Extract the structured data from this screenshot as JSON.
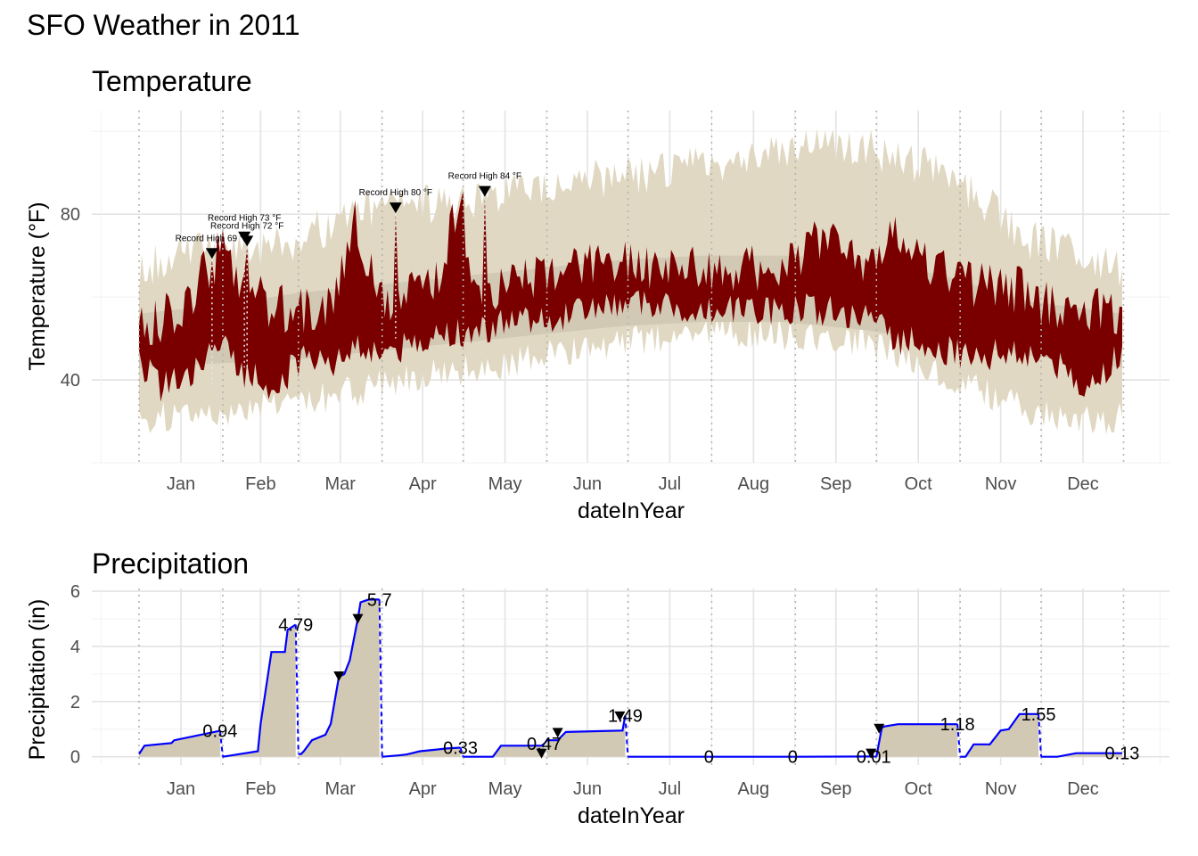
{
  "title": "SFO Weather in 2011",
  "chart_data": [
    {
      "type": "area",
      "panel": "Temperature",
      "title": "Temperature",
      "xlabel": "dateInYear",
      "ylabel": "Temperature (°F)",
      "x_ticks": [
        "Jan",
        "Feb",
        "Mar",
        "Apr",
        "May",
        "Jun",
        "Jul",
        "Aug",
        "Sep",
        "Oct",
        "Nov",
        "Dec"
      ],
      "y_ticks": [
        40,
        80
      ],
      "ylim": [
        20,
        105
      ],
      "grid": true,
      "colors": {
        "record_band": "#e0d8c2",
        "normal_band": "#d2c9b4",
        "actual": "#7a0000"
      },
      "record_anchors": {
        "day": [
          1,
          20,
          40,
          60,
          80,
          100,
          130,
          160,
          190,
          220,
          250,
          270,
          290,
          310,
          330,
          350,
          365
        ],
        "high": [
          66,
          72,
          70,
          74,
          80,
          82,
          84,
          88,
          90,
          93,
          97,
          96,
          92,
          85,
          74,
          70,
          66
        ],
        "low": [
          30,
          32,
          33,
          35,
          37,
          40,
          43,
          47,
          50,
          51,
          51,
          49,
          44,
          38,
          33,
          30,
          31
        ]
      },
      "normal_anchors": {
        "day": [
          1,
          30,
          60,
          90,
          120,
          150,
          180,
          210,
          240,
          270,
          300,
          330,
          365
        ],
        "high": [
          56,
          58,
          61,
          63,
          65,
          67,
          69,
          70,
          70,
          69,
          65,
          59,
          56
        ],
        "low": [
          43,
          44,
          45,
          47,
          49,
          51,
          53,
          54,
          54,
          52,
          49,
          46,
          43
        ]
      },
      "actual_anchors": {
        "day": [
          1,
          10,
          20,
          27,
          33,
          40,
          50,
          60,
          70,
          75,
          80,
          90,
          100,
          110,
          120,
          125,
          135,
          150,
          170,
          185,
          200,
          220,
          240,
          255,
          270,
          280,
          295,
          310,
          325,
          340,
          350,
          355,
          365
        ],
        "high": [
          52,
          55,
          60,
          68,
          73,
          62,
          58,
          56,
          57,
          62,
          80,
          58,
          60,
          62,
          84,
          62,
          62,
          66,
          68,
          68,
          67,
          66,
          68,
          74,
          66,
          76,
          68,
          63,
          62,
          58,
          56,
          58,
          54
        ],
        "low": [
          44,
          38,
          42,
          46,
          47,
          42,
          38,
          44,
          46,
          44,
          48,
          46,
          48,
          50,
          52,
          51,
          53,
          55,
          57,
          58,
          58,
          57,
          57,
          57,
          55,
          50,
          48,
          46,
          46,
          44,
          38,
          38,
          48
        ]
      },
      "annotations": [
        {
          "label": "Record High 69 °F",
          "day": 28,
          "temp": 69
        },
        {
          "label": "Record High 73 °F",
          "day": 40,
          "temp": 73
        },
        {
          "label": "Record High 72 °F",
          "day": 41,
          "temp": 72
        },
        {
          "label": "Record High 80 °F",
          "day": 96,
          "temp": 80
        },
        {
          "label": "Record High 84 °F",
          "day": 129,
          "temp": 84
        }
      ]
    },
    {
      "type": "line",
      "panel": "Precipitation",
      "title": "Precipitation",
      "xlabel": "dateInYear",
      "ylabel": "Precipitation (in)",
      "x_ticks": [
        "Jan",
        "Feb",
        "Mar",
        "Apr",
        "May",
        "Jun",
        "Jul",
        "Aug",
        "Sep",
        "Oct",
        "Nov",
        "Dec"
      ],
      "y_ticks": [
        0,
        2,
        4,
        6
      ],
      "ylim": [
        -0.3,
        6.1
      ],
      "grid": true,
      "colors": {
        "line": "#0000ff",
        "fill": "#d2c9b4"
      },
      "months": [
        {
          "month": "Jan",
          "days": [
            1,
            3,
            13,
            14,
            31
          ],
          "cumulative": [
            0.1,
            0.4,
            0.5,
            0.6,
            0.94
          ]
        },
        {
          "month": "Feb",
          "days": [
            32,
            45,
            46,
            50,
            51,
            55,
            56,
            59
          ],
          "cumulative": [
            0.0,
            0.2,
            1.2,
            3.8,
            3.8,
            3.8,
            4.6,
            4.79
          ]
        },
        {
          "month": "Mar",
          "days": [
            60,
            61,
            62,
            65,
            70,
            72,
            75,
            77,
            79,
            82,
            83,
            86,
            90
          ],
          "cumulative": [
            0.1,
            0.1,
            0.2,
            0.6,
            0.8,
            1.2,
            2.9,
            3.0,
            3.5,
            5.0,
            5.6,
            5.7,
            5.7
          ]
        },
        {
          "month": "Apr",
          "days": [
            91,
            97,
            100,
            105,
            110,
            115,
            120
          ],
          "cumulative": [
            0.0,
            0.05,
            0.08,
            0.2,
            0.25,
            0.3,
            0.33
          ]
        },
        {
          "month": "May",
          "days": [
            121,
            132,
            135,
            145,
            150,
            151
          ],
          "cumulative": [
            0.0,
            0.0,
            0.4,
            0.4,
            0.4,
            0.47
          ]
        },
        {
          "month": "Jun",
          "days": [
            152,
            156,
            159,
            180,
            181
          ],
          "cumulative": [
            0.6,
            0.6,
            0.9,
            0.95,
            1.49
          ]
        },
        {
          "month": "Jul",
          "days": [
            182,
            212
          ],
          "cumulative": [
            0,
            0
          ]
        },
        {
          "month": "Aug",
          "days": [
            213,
            243
          ],
          "cumulative": [
            0,
            0
          ]
        },
        {
          "month": "Sep",
          "days": [
            244,
            273
          ],
          "cumulative": [
            0,
            0.01
          ]
        },
        {
          "month": "Oct",
          "days": [
            274,
            276,
            277,
            282,
            295,
            303,
            304
          ],
          "cumulative": [
            0.0,
            1.05,
            1.1,
            1.18,
            1.18,
            1.18,
            1.18
          ]
        },
        {
          "month": "Nov",
          "days": [
            305,
            307,
            310,
            316,
            320,
            323,
            327,
            334
          ],
          "cumulative": [
            0.0,
            0.0,
            0.45,
            0.45,
            0.95,
            1.0,
            1.55,
            1.55
          ]
        },
        {
          "month": "Dec",
          "days": [
            335,
            341,
            348,
            356,
            365
          ],
          "cumulative": [
            0.0,
            0.0,
            0.13,
            0.13,
            0.13
          ]
        }
      ],
      "month_totals": [
        "0.94",
        "4.79",
        "5.7",
        "0.33",
        "0.47",
        "1.49",
        "0",
        "0",
        "0.01",
        "1.18",
        "1.55",
        "0.13"
      ],
      "markers": [
        {
          "day": 75,
          "value": 2.9
        },
        {
          "day": 82,
          "value": 4.98
        },
        {
          "day": 150,
          "value": 0.1
        },
        {
          "day": 156,
          "value": 0.85
        },
        {
          "day": 179,
          "value": 1.45
        },
        {
          "day": 272,
          "value": 0.1
        },
        {
          "day": 275,
          "value": 1.0
        }
      ]
    }
  ]
}
